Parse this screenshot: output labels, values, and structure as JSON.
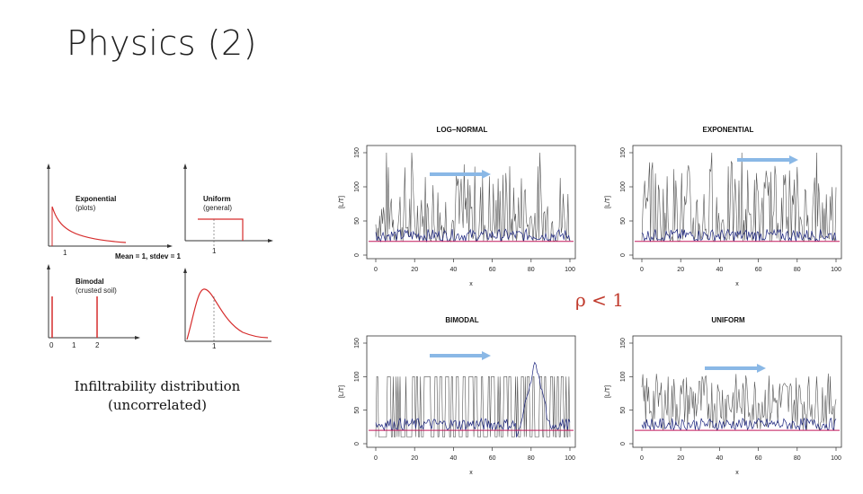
{
  "slide": {
    "title": "Physics (2)",
    "caption_line1": "Infiltrability distribution",
    "caption_line2": "(uncorrelated)",
    "rho_label": "ρ < 1"
  },
  "diagrams": {
    "exponential": {
      "name": "Exponential",
      "sub": "(plots)",
      "xtick": "1"
    },
    "uniform": {
      "name": "Uniform",
      "sub": "(general)",
      "xtick": "1"
    },
    "lognormal_note": "Mean = 1, stdev = 1",
    "bimodal": {
      "name": "Bimodal",
      "sub": "(crusted soil)",
      "xticks": [
        "0",
        "1",
        "2"
      ]
    },
    "lognormal": {
      "xtick": "1"
    }
  },
  "chart_data": [
    {
      "type": "line",
      "title": "LOG–NORMAL",
      "xlabel": "x",
      "ylabel": "[L/T]",
      "xlim": [
        0,
        100
      ],
      "ylim": [
        0,
        150
      ],
      "xticks": [
        "0",
        "20",
        "40",
        "60",
        "80",
        "100"
      ],
      "yticks": [
        "0",
        "50",
        "100",
        "150"
      ]
    },
    {
      "type": "line",
      "title": "EXPONENTIAL",
      "xlabel": "x",
      "ylabel": "[L/T]",
      "xlim": [
        0,
        100
      ],
      "ylim": [
        0,
        150
      ],
      "xticks": [
        "0",
        "20",
        "40",
        "60",
        "80",
        "100"
      ],
      "yticks": [
        "0",
        "50",
        "100",
        "150"
      ]
    },
    {
      "type": "line",
      "title": "BIMODAL",
      "xlabel": "x",
      "ylabel": "[L/T]",
      "xlim": [
        0,
        100
      ],
      "ylim": [
        0,
        150
      ],
      "xticks": [
        "0",
        "20",
        "40",
        "60",
        "80",
        "100"
      ],
      "yticks": [
        "0",
        "50",
        "100",
        "150"
      ]
    },
    {
      "type": "line",
      "title": "UNIFORM",
      "xlabel": "x",
      "ylabel": "[L/T]",
      "xlim": [
        0,
        100
      ],
      "ylim": [
        0,
        150
      ],
      "xticks": [
        "0",
        "20",
        "40",
        "60",
        "80",
        "100"
      ],
      "yticks": [
        "0",
        "50",
        "100",
        "150"
      ]
    }
  ],
  "colors": {
    "curve": "#d62c2c",
    "series_gray": "#555555",
    "series_blue": "#1a237e",
    "threshold": "#c2185b",
    "arrow": "#8ab8e6"
  }
}
